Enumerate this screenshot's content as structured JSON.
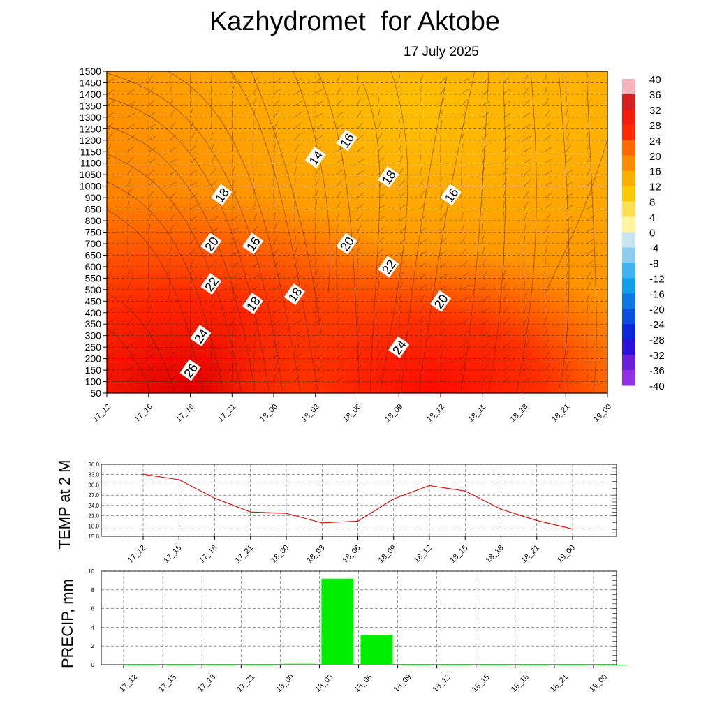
{
  "header": {
    "title": "Kazhydromet  for Aktobe",
    "subtitle": "17 July 2025"
  },
  "chart_data": [
    {
      "type": "heatmap",
      "name": "temperature cross-section with wind barbs",
      "x_ticks": [
        "17_12",
        "17_15",
        "17_18",
        "17_21",
        "18_00",
        "18_03",
        "18_06",
        "18_09",
        "18_12",
        "18_15",
        "18_18",
        "18_21",
        "19_00"
      ],
      "y_ticks": [
        "50",
        "100",
        "150",
        "200",
        "250",
        "300",
        "350",
        "400",
        "450",
        "500",
        "550",
        "600",
        "650",
        "700",
        "750",
        "800",
        "850",
        "900",
        "1000",
        "1050",
        "1100",
        "1150",
        "1200",
        "1250",
        "1300",
        "1350",
        "1400",
        "1450",
        "1500"
      ],
      "grid": true,
      "colorbar": {
        "placement": "right",
        "labels": [
          "40",
          "36",
          "32",
          "28",
          "24",
          "20",
          "16",
          "12",
          "8",
          "4",
          "0",
          "-4",
          "-8",
          "-12",
          "-16",
          "-20",
          "-24",
          "-28",
          "-32",
          "-36",
          "-40"
        ],
        "colors": [
          "#f3b3bb",
          "#d42020",
          "#f01c0c",
          "#ff2a00",
          "#ff6a00",
          "#ff8c00",
          "#ffaf00",
          "#ffc800",
          "#ffe050",
          "#fff4a0",
          "#c9e6f5",
          "#8fcdf0",
          "#40b4f0",
          "#109ee8",
          "#0a78e0",
          "#0a50dc",
          "#0a28d8",
          "#2a10d8",
          "#6a20d8",
          "#9030e0"
        ]
      },
      "contour_labels": [
        {
          "text": "14",
          "time": "18_08",
          "level": 1125
        },
        {
          "text": "16",
          "time": "18_11",
          "level": 1200
        },
        {
          "text": "16",
          "time": "18_02",
          "level": 700
        },
        {
          "text": "16",
          "time": "18_21",
          "level": 925
        },
        {
          "text": "18",
          "time": "17_23",
          "level": 925
        },
        {
          "text": "18",
          "time": "18_02",
          "level": 440
        },
        {
          "text": "18",
          "time": "18_06",
          "level": 480
        },
        {
          "text": "18",
          "time": "18_15",
          "level": 1040
        },
        {
          "text": "20",
          "time": "17_22",
          "level": 700
        },
        {
          "text": "20",
          "time": "18_11",
          "level": 700
        },
        {
          "text": "20",
          "time": "18_20",
          "level": 450
        },
        {
          "text": "22",
          "time": "17_22",
          "level": 525
        },
        {
          "text": "22",
          "time": "18_15",
          "level": 600
        },
        {
          "text": "24",
          "time": "17_21",
          "level": 300
        },
        {
          "text": "24",
          "time": "18_16",
          "level": 250
        },
        {
          "text": "26",
          "time": "17_20",
          "level": 150
        }
      ]
    },
    {
      "type": "line",
      "ylabel": "TEMP at 2 M",
      "categories": [
        "17_12",
        "17_15",
        "17_18",
        "17_21",
        "18_00",
        "18_03",
        "18_06",
        "18_09",
        "18_12",
        "18_15",
        "18_18",
        "18_21",
        "19_00"
      ],
      "y_ticks": [
        "36.0",
        "33.0",
        "30.0",
        "27.0",
        "24.0",
        "21.0",
        "18.0",
        "15.0"
      ],
      "ylim": [
        15,
        36
      ],
      "line_color": "#e00000",
      "series": [
        {
          "values": [
            33.1,
            31.5,
            26.1,
            22.1,
            21.7,
            18.9,
            19.4,
            25.9,
            29.8,
            28.2,
            22.9,
            19.6,
            17.1
          ]
        }
      ],
      "grid": true
    },
    {
      "type": "bar",
      "ylabel": "PRECIP, mm",
      "categories": [
        "17_12",
        "17_15",
        "17_18",
        "17_21",
        "18_00",
        "18_03",
        "18_06",
        "18_09",
        "18_12",
        "18_15",
        "18_18",
        "18_21",
        "19_00"
      ],
      "y_ticks": [
        "10",
        "8",
        "6",
        "4",
        "2",
        "0"
      ],
      "ylim": [
        0,
        10
      ],
      "bar_color": "#00ee00",
      "series": [
        {
          "values": [
            0,
            0,
            0,
            0,
            0.1,
            9.2,
            3.2,
            0,
            0,
            0,
            0,
            0,
            0
          ]
        }
      ],
      "grid": true
    }
  ]
}
